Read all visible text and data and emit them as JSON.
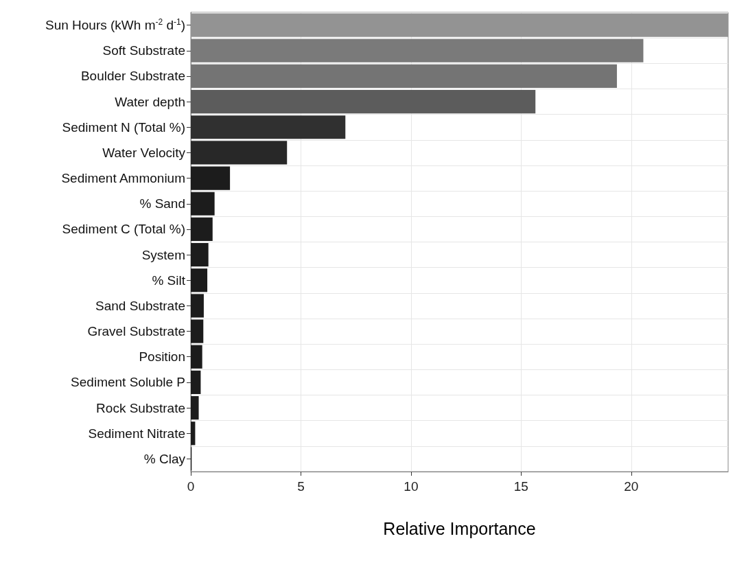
{
  "chart_data": {
    "type": "bar",
    "orientation": "horizontal",
    "xlabel": "Relative Importance",
    "categories": [
      "Sun Hours (kWh m$^{-2}$ d$^{-1}$)",
      "Soft Substrate",
      "Boulder Substrate",
      "Water depth",
      "Sediment N (Total %)",
      "Water Velocity",
      "Sediment Ammonium",
      "% Sand",
      "Sediment C (Total %)",
      "System",
      "% Silt",
      "Sand Substrate",
      "Gravel Substrate",
      "Position",
      "Sediment Soluble P",
      "Rock Substrate",
      "Sediment Nitrate",
      "% Clay"
    ],
    "values": [
      24.4,
      20.55,
      19.35,
      15.65,
      7.02,
      4.37,
      1.78,
      1.08,
      0.99,
      0.8,
      0.75,
      0.59,
      0.57,
      0.52,
      0.45,
      0.36,
      0.2,
      0.04
    ],
    "colors": [
      "#939393",
      "#7a7a7a",
      "#747474",
      "#5c5c5c",
      "#303030",
      "#282828",
      "#1c1c1c",
      "#1c1c1c",
      "#1c1c1c",
      "#1c1c1c",
      "#1c1c1c",
      "#1c1c1c",
      "#1c1c1c",
      "#1c1c1c",
      "#1c1c1c",
      "#1c1c1c",
      "#1c1c1c",
      "#1c1c1c"
    ],
    "xlim": [
      0,
      24.4
    ],
    "xticks": [
      0,
      5,
      10,
      15,
      20
    ],
    "grid": true
  }
}
